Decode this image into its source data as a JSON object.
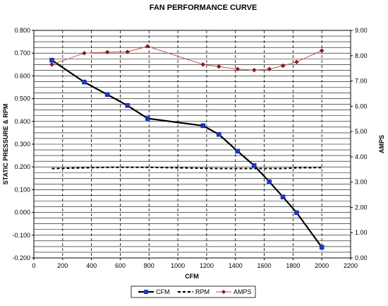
{
  "chart_data": {
    "type": "line",
    "title": "FAN PERFORMANCE CURVE",
    "xlabel": "CFM",
    "ylabel": "STATIC PRESSURE & RPM",
    "y2label": "AMPS",
    "xlim": [
      0,
      2200
    ],
    "xticks": [
      0,
      200,
      400,
      600,
      800,
      1000,
      1200,
      1400,
      1600,
      1800,
      2000,
      2200
    ],
    "ylim": [
      -0.2,
      0.8
    ],
    "yticks": [
      "-0.200",
      "-0.100",
      "0.000",
      "0.100",
      "0.200",
      "0.300",
      "0.400",
      "0.500",
      "0.600",
      "0.700",
      "0.800"
    ],
    "y2lim": [
      0,
      9
    ],
    "y2ticks": [
      "0.00",
      "1.00",
      "2.00",
      "3.00",
      "4.00",
      "5.00",
      "6.00",
      "7.00",
      "8.00",
      "9.00"
    ],
    "grid": {
      "horizontal": true,
      "vertical": "dashed"
    },
    "legend_position": "bottom",
    "series": [
      {
        "name": "CFM",
        "axis": "left",
        "style": "solid",
        "marker": "square",
        "color": "#000000",
        "marker_color": "#1f35c8",
        "points": [
          [
            125,
            0.669
          ],
          [
            350,
            0.573
          ],
          [
            510,
            0.518
          ],
          [
            650,
            0.47
          ],
          [
            790,
            0.413
          ],
          [
            1175,
            0.381
          ],
          [
            1285,
            0.343
          ],
          [
            1415,
            0.269
          ],
          [
            1530,
            0.206
          ],
          [
            1635,
            0.135
          ],
          [
            1730,
            0.068
          ],
          [
            1825,
            -0.001
          ],
          [
            2000,
            -0.153
          ]
        ]
      },
      {
        "name": "RPM",
        "axis": "left",
        "style": "dashed",
        "marker": "none",
        "color": "#000000",
        "points": [
          [
            125,
            0.193
          ],
          [
            350,
            0.196
          ],
          [
            510,
            0.198
          ],
          [
            650,
            0.198
          ],
          [
            790,
            0.198
          ],
          [
            1175,
            0.194
          ],
          [
            1285,
            0.193
          ],
          [
            1415,
            0.193
          ],
          [
            1530,
            0.193
          ],
          [
            1635,
            0.193
          ],
          [
            1730,
            0.193
          ],
          [
            1825,
            0.196
          ],
          [
            2000,
            0.197
          ]
        ]
      },
      {
        "name": "AMPS",
        "axis": "right",
        "style": "solid",
        "marker": "diamond",
        "color": "#c0504d",
        "marker_color": "#8b1a1a",
        "points": [
          [
            125,
            7.65
          ],
          [
            350,
            8.1
          ],
          [
            510,
            8.14
          ],
          [
            650,
            8.15
          ],
          [
            790,
            8.37
          ],
          [
            1175,
            7.65
          ],
          [
            1285,
            7.57
          ],
          [
            1415,
            7.47
          ],
          [
            1530,
            7.43
          ],
          [
            1635,
            7.47
          ],
          [
            1730,
            7.6
          ],
          [
            1825,
            7.75
          ],
          [
            2000,
            8.2
          ]
        ]
      }
    ]
  }
}
